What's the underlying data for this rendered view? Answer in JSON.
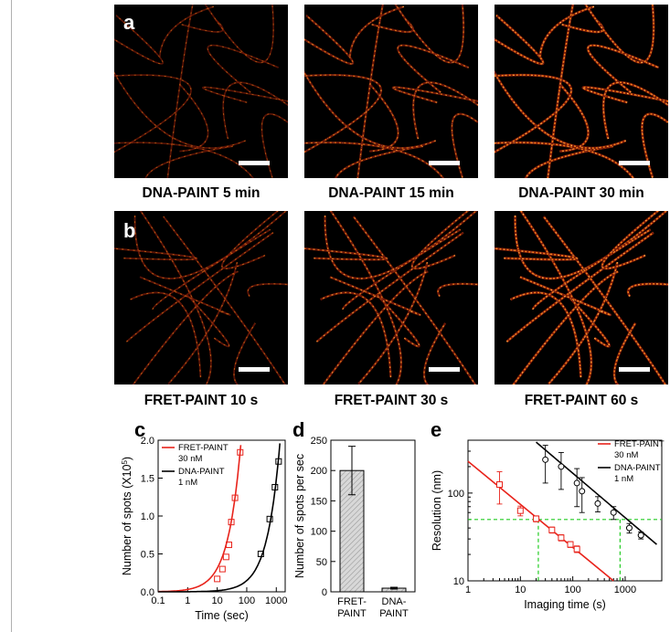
{
  "panels": {
    "a": {
      "letter": "a",
      "images": [
        {
          "caption": "DNA-PAINT  5 min",
          "density": 0.35
        },
        {
          "caption": "DNA-PAINT  15 min",
          "density": 0.7
        },
        {
          "caption": "DNA-PAINT  30 min",
          "density": 1.0
        }
      ]
    },
    "b": {
      "letter": "b",
      "images": [
        {
          "caption": "FRET-PAINT 10 s",
          "density": 0.45
        },
        {
          "caption": "FRET-PAINT 30 s",
          "density": 0.75
        },
        {
          "caption": "FRET-PAINT 60 s",
          "density": 1.0
        }
      ]
    },
    "c": {
      "letter": "c"
    },
    "d": {
      "letter": "d"
    },
    "e": {
      "letter": "e"
    }
  },
  "colors": {
    "fret": "#e8231b",
    "dna": "#000000",
    "guide": "#22cc22",
    "bar_fill": "#d8d8d8"
  },
  "chart_data": [
    {
      "id": "c",
      "type": "scatter",
      "xlabel": "Time (sec)",
      "ylabel": "Number of spots (X10",
      "ylabel_sup": "5",
      "ylabel_end": ")",
      "xscale": "log",
      "xlim": [
        0.1,
        2000
      ],
      "ylim": [
        0,
        2.0
      ],
      "xticks": [
        "0.1",
        "1",
        "10",
        "100",
        "1000"
      ],
      "yticks": [
        "0.0",
        "0.5",
        "1.0",
        "1.5",
        "2.0"
      ],
      "legend": [
        {
          "name": "FRET-PAINT",
          "sub": "30 nM",
          "color": "#e8231b"
        },
        {
          "name": "DNA-PAINT",
          "sub": "1 nM",
          "color": "#000000"
        }
      ],
      "series": [
        {
          "name": "FRET-PAINT",
          "x": [
            10,
            15,
            20,
            25,
            30,
            40,
            60
          ],
          "y": [
            0.17,
            0.3,
            0.46,
            0.62,
            0.92,
            1.24,
            1.84
          ],
          "fit_rate": 0.031
        },
        {
          "name": "DNA-PAINT",
          "x": [
            300,
            600,
            900,
            1200
          ],
          "y": [
            0.5,
            0.96,
            1.38,
            1.72
          ],
          "fit_rate": 0.00148
        }
      ]
    },
    {
      "id": "d",
      "type": "bar",
      "ylabel": "Number of spots per sec",
      "ylim": [
        0,
        250
      ],
      "yticks": [
        "0",
        "50",
        "100",
        "150",
        "200",
        "250"
      ],
      "categories": [
        [
          "FRET-",
          "PAINT"
        ],
        [
          "DNA-",
          "PAINT"
        ]
      ],
      "values": [
        200,
        6
      ],
      "errors": [
        40,
        1.5
      ]
    },
    {
      "id": "e",
      "type": "scatter",
      "xlabel": "Imaging time (s)",
      "ylabel": "Resolution (nm)",
      "xscale": "log",
      "yscale": "log",
      "xlim": [
        1,
        5000
      ],
      "ylim": [
        10,
        400
      ],
      "xticks": [
        "1",
        "10",
        "100",
        "1000"
      ],
      "yticks": [
        "10",
        "100"
      ],
      "legend": [
        {
          "name": "FRET-PAINT",
          "sub": "30 nM",
          "color": "#e8231b"
        },
        {
          "name": "DNA-PAINT",
          "sub": "1 nM",
          "color": "#000000"
        }
      ],
      "series": [
        {
          "name": "FRET-PAINT",
          "x": [
            4,
            10,
            20,
            40,
            60,
            90,
            120
          ],
          "y": [
            125,
            63,
            51,
            38,
            31,
            26,
            23
          ],
          "err": [
            50,
            8,
            4,
            3,
            2.5,
            2,
            2
          ],
          "fit": [
            [
              1,
              230
            ],
            [
              600,
              10
            ]
          ]
        },
        {
          "name": "DNA-PAINT",
          "x": [
            30,
            60,
            120,
            150,
            300,
            600,
            1200,
            2000
          ],
          "y": [
            240,
            200,
            130,
            105,
            76,
            60,
            40,
            33
          ],
          "err": [
            110,
            90,
            60,
            45,
            15,
            10,
            5,
            3
          ],
          "fit": [
            [
              20,
              380
            ],
            [
              4000,
              26
            ]
          ]
        }
      ],
      "guides": {
        "y": 50,
        "x": [
          22,
          800
        ]
      }
    }
  ]
}
